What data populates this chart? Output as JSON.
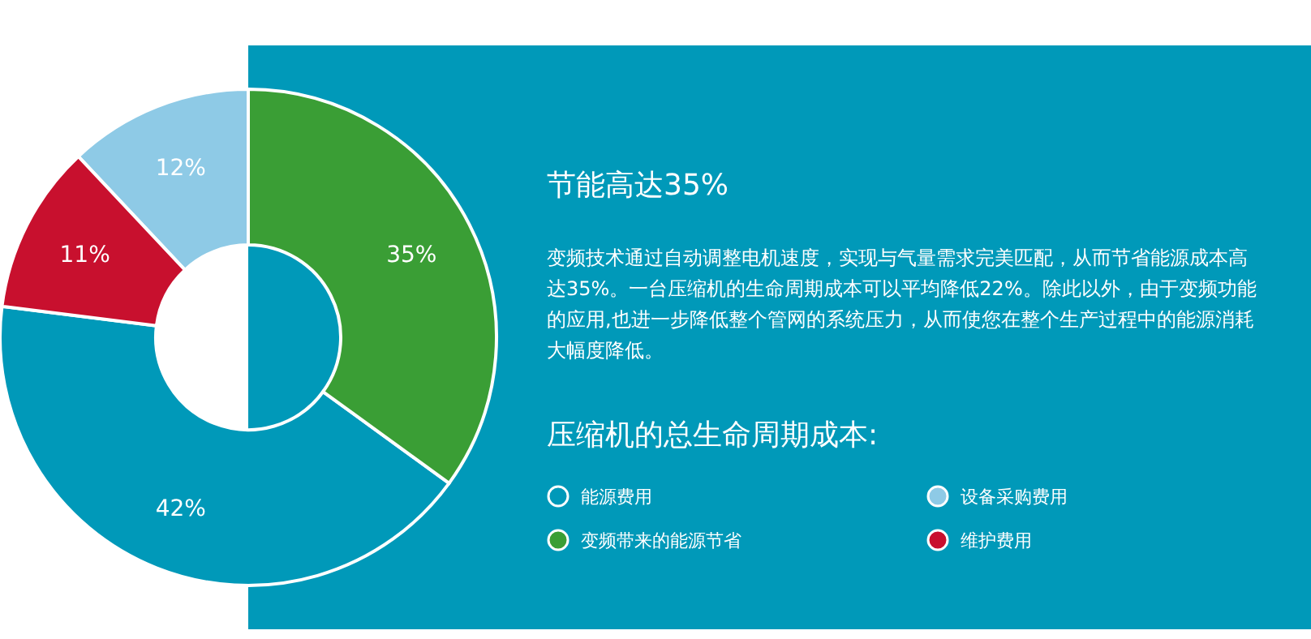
{
  "chart_data": {
    "type": "donut",
    "title": "节能高达35%",
    "annotations": [
      "变频技术通过自动调整电机速度，实现与气量需求完美匹配，从而节省能源成本高达35%。一台压缩机的生命周期成本可以平均降低22%。除此以外，由于变频功能的应用,也进一步降低整个管网的系统压力，从而使您在整个生产过程中的能源消耗大幅度降低。"
    ],
    "legend_title": "压缩机的总生命周期成本:",
    "categories": [
      "能源费用",
      "变频带来的能源节省",
      "设备采购费用",
      "维护费用"
    ],
    "values": [
      42,
      35,
      12,
      11
    ],
    "value_labels": [
      "42%",
      "35%",
      "12%",
      "11%"
    ],
    "colors": [
      "#0099b9",
      "#3a9e35",
      "#8ecae6",
      "#c8102e"
    ],
    "legend": "right"
  }
}
